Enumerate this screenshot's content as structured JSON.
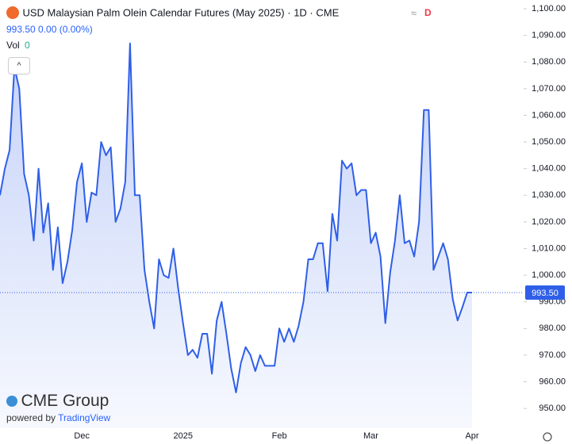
{
  "header": {
    "title": "USD Malaysian Palm Olein Calendar Futures (May 2025) · 1D · CME",
    "price": "993.50",
    "change": "0.00",
    "change_pct": "(0.00%)",
    "vol_label": "Vol",
    "vol_value": "0",
    "badge": "D"
  },
  "branding": {
    "logo": "CME Group",
    "powered_by": "powered by",
    "platform": "TradingView"
  },
  "chart_data": {
    "type": "area",
    "color": "#2f5fe8",
    "categories": [
      null,
      null,
      null,
      null,
      null,
      null,
      null,
      null,
      null,
      null,
      null,
      null,
      null,
      null,
      null,
      null,
      null,
      "Dec",
      null,
      null,
      null,
      null,
      null,
      null,
      null,
      null,
      null,
      null,
      null,
      null,
      null,
      null,
      null,
      null,
      null,
      null,
      null,
      null,
      "2025",
      null,
      null,
      null,
      null,
      null,
      null,
      null,
      null,
      null,
      null,
      null,
      null,
      null,
      null,
      null,
      null,
      null,
      null,
      null,
      "Feb",
      null,
      null,
      null,
      null,
      null,
      null,
      null,
      null,
      null,
      null,
      null,
      null,
      null,
      null,
      null,
      null,
      null,
      null,
      "Mar",
      null,
      null,
      null,
      null,
      null,
      null,
      null,
      null,
      null,
      null,
      null,
      null,
      null,
      null,
      null,
      null,
      null,
      null,
      null,
      null,
      "Apr"
    ],
    "values": [
      1030,
      1040,
      1047,
      1078,
      1070,
      1038,
      1030,
      1013,
      1040,
      1016,
      1027,
      1002,
      1018,
      997,
      1005,
      1017,
      1035,
      1042,
      1020,
      1031,
      1030,
      1050,
      1045,
      1048,
      1020,
      1025,
      1035,
      1087,
      1030,
      1030,
      1002,
      990,
      980,
      1006,
      1000,
      999,
      1010,
      995,
      982,
      970,
      972,
      969,
      978,
      978,
      963,
      983,
      990,
      978,
      965,
      956,
      967,
      973,
      970,
      964,
      970,
      966,
      966,
      966,
      980,
      975,
      980,
      975,
      981,
      990,
      1006,
      1006,
      1012,
      1012,
      994,
      1023,
      1013,
      1043,
      1040,
      1042,
      1030,
      1032,
      1032,
      1012,
      1016,
      1007,
      982,
      1001,
      1013,
      1030,
      1012,
      1013,
      1007,
      1020,
      1062,
      1062,
      1002,
      1007,
      1012,
      1006,
      991,
      983,
      988,
      993.5,
      993.5
    ],
    "ylim": [
      942.6,
      1103.3
    ],
    "yticks": [
      {
        "value": 950,
        "label": "950.00"
      },
      {
        "value": 960,
        "label": "960.00"
      },
      {
        "value": 970,
        "label": "970.00"
      },
      {
        "value": 980,
        "label": "980.00"
      },
      {
        "value": 990,
        "label": "990.00"
      },
      {
        "value": 1000,
        "label": "1,000.00"
      },
      {
        "value": 1010,
        "label": "1,010.00"
      },
      {
        "value": 1020,
        "label": "1,020.00"
      },
      {
        "value": 1030,
        "label": "1,030.00"
      },
      {
        "value": 1040,
        "label": "1,040.00"
      },
      {
        "value": 1050,
        "label": "1,050.00"
      },
      {
        "value": 1060,
        "label": "1,060.00"
      },
      {
        "value": 1070,
        "label": "1,070.00"
      },
      {
        "value": 1080,
        "label": "1,080.00"
      },
      {
        "value": 1090,
        "label": "1,090.00"
      },
      {
        "value": 1100,
        "label": "1,100.00"
      }
    ],
    "last_price": {
      "value": 993.5,
      "label": "993.50"
    }
  }
}
